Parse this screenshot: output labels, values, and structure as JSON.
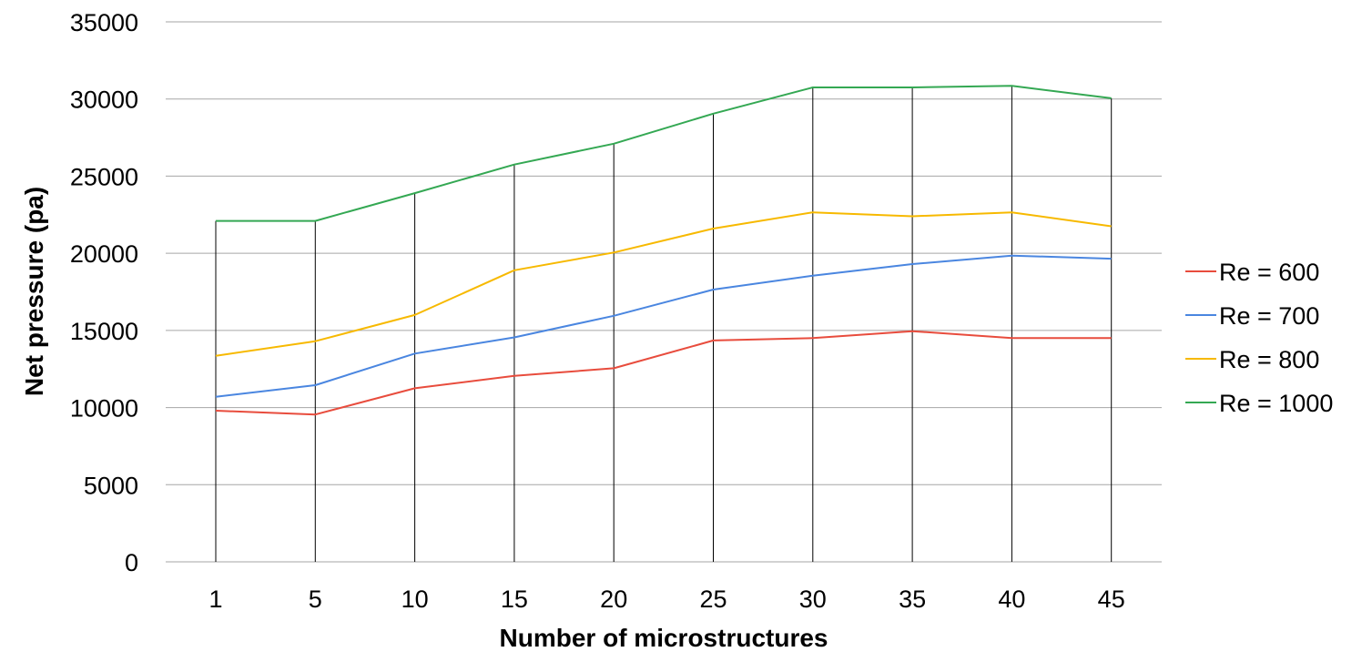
{
  "chart_data": {
    "type": "line",
    "xlabel": "Number of microstructures",
    "ylabel": "Net pressure (pa)",
    "categories": [
      "1",
      "5",
      "10",
      "15",
      "20",
      "25",
      "30",
      "35",
      "40",
      "45"
    ],
    "ylim": [
      0,
      35000
    ],
    "yticks": [
      "0",
      "5000",
      "10000",
      "15000",
      "20000",
      "25000",
      "30000",
      "35000"
    ],
    "grid": "horizontal",
    "drop_lines": true,
    "legend_position": "right",
    "series": [
      {
        "name": "Re = 600",
        "color": "#e84c3d",
        "values": [
          9800,
          9550,
          11250,
          12050,
          12550,
          14350,
          14500,
          14950,
          14500,
          14500
        ]
      },
      {
        "name": "Re = 700",
        "color": "#4a86e0",
        "values": [
          10700,
          11450,
          13500,
          14550,
          15950,
          17650,
          18550,
          19300,
          19850,
          19650
        ]
      },
      {
        "name": "Re = 800",
        "color": "#f7b900",
        "values": [
          13350,
          14300,
          16000,
          18900,
          20050,
          21600,
          22650,
          22400,
          22650,
          21750
        ]
      },
      {
        "name": "Re = 1000",
        "color": "#34a853",
        "values": [
          22100,
          22100,
          23900,
          25750,
          27100,
          29050,
          30750,
          30750,
          30850,
          30050
        ]
      }
    ]
  }
}
